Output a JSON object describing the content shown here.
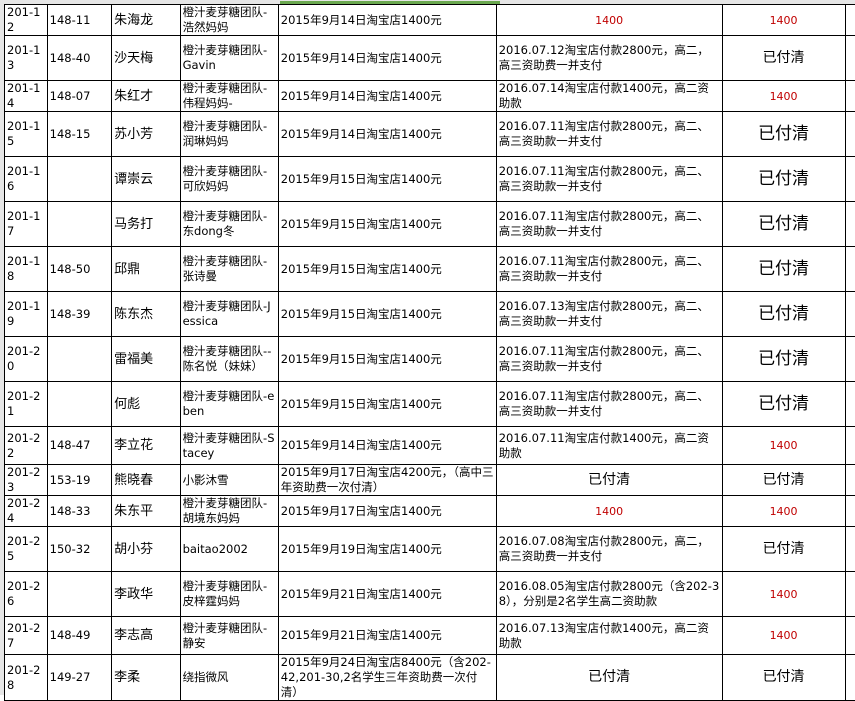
{
  "colors": {
    "red": "#c00000",
    "selection": "#6aa84f",
    "grid": "#000000"
  },
  "rows": [
    {
      "id": "201-12",
      "code": "148-11",
      "name": "朱海龙",
      "team": "橙汁麦芽糖团队-浩然妈妈",
      "date": "2015年9月14日淘宝店1400元",
      "payment": "1400",
      "payment_style": "red",
      "status": "1400",
      "status_style": "red"
    },
    {
      "id": "201-13",
      "code": "148-40",
      "name": "沙天梅",
      "team": "橙汁麦芽糖团队-Gavin",
      "date": "2015年9月14日淘宝店1400元",
      "payment": "2016.07.12淘宝店付款2800元，高二，高三资助费一并支付",
      "payment_style": "text",
      "status": "已付清",
      "status_style": "mid"
    },
    {
      "id": "201-14",
      "code": "148-07",
      "name": "朱红才",
      "team": "橙汁麦芽糖团队-伟程妈妈-",
      "date": "2015年9月14日淘宝店1400元",
      "payment": "2016.07.14淘宝店付款1400元，高二资助款",
      "payment_style": "text",
      "status": "1400",
      "status_style": "red"
    },
    {
      "id": "201-15",
      "code": "148-15",
      "name": "苏小芳",
      "team": "橙汁麦芽糖团队-润琳妈妈",
      "date": "2015年9月14日淘宝店1400元",
      "payment": "2016.07.11淘宝店付款2800元，高二、高三资助款一并支付",
      "payment_style": "text",
      "status": "已付清",
      "status_style": "large"
    },
    {
      "id": "201-16",
      "code": "",
      "name": "谭崇云",
      "team": "橙汁麦芽糖团队-可欣妈妈",
      "date": "2015年9月15日淘宝店1400元",
      "payment": "2016.07.11淘宝店付款2800元，高二、高三资助款一并支付",
      "payment_style": "text",
      "status": "已付清",
      "status_style": "large"
    },
    {
      "id": "201-17",
      "code": "",
      "name": "马务打",
      "team": "橙汁麦芽糖团队-东dong冬",
      "date": "2015年9月15日淘宝店1400元",
      "payment": "2016.07.11淘宝店付款2800元，高二、高三资助款一并支付",
      "payment_style": "text",
      "status": "已付清",
      "status_style": "large"
    },
    {
      "id": "201-18",
      "code": "148-50",
      "name": "邱鼎",
      "team": "橙汁麦芽糖团队-张诗曼",
      "date": "2015年9月15日淘宝店1400元",
      "payment": "2016.07.11淘宝店付款2800元，高二、高三资助款一并支付",
      "payment_style": "text",
      "status": "已付清",
      "status_style": "large"
    },
    {
      "id": "201-19",
      "code": "148-39",
      "name": "陈东杰",
      "team": "橙汁麦芽糖团队-Jessica",
      "date": "2015年9月15日淘宝店1400元",
      "payment": "2016.07.13淘宝店付款2800元，高二、高三资助款一并支付",
      "payment_style": "text",
      "status": "已付清",
      "status_style": "large"
    },
    {
      "id": "201-20",
      "code": "",
      "name": "雷福美",
      "team": "橙汁麦芽糖团队--陈名悦（妹妹）",
      "date": "2015年9月15日淘宝店1400元",
      "payment": "2016.07.11淘宝店付款2800元，高二、高三资助款一并支付",
      "payment_style": "text",
      "status": "已付清",
      "status_style": "large"
    },
    {
      "id": "201-21",
      "code": "",
      "name": "何彪",
      "team": "橙汁麦芽糖团队-eben",
      "date": "2015年9月15日淘宝店1400元",
      "payment": "2016.07.11淘宝店付款2800元，高二、高三资助款一并支付",
      "payment_style": "text",
      "status": "已付清",
      "status_style": "large"
    },
    {
      "id": "201-22",
      "code": "148-47",
      "name": "李立花",
      "team": "橙汁麦芽糖团队-Stacey",
      "date": "2015年9月14日淘宝店1400元",
      "payment": "2016.07.11淘宝店付款1400元，高二资助款",
      "payment_style": "text",
      "status": "1400",
      "status_style": "red"
    },
    {
      "id": "201-23",
      "code": "153-19",
      "name": "熊晓春",
      "team": "小影沐雪",
      "date": "2015年9月17日淘宝店4200元，（高中三年资助费一次付清）",
      "payment": "已付清",
      "payment_style": "mid",
      "status": "已付清",
      "status_style": "mid"
    },
    {
      "id": "201-24",
      "code": "148-33",
      "name": "朱东平",
      "team": "橙汁麦芽糖团队-胡境东妈妈",
      "date": "2015年9月17日淘宝店1400元",
      "payment": "1400",
      "payment_style": "red",
      "status": "1400",
      "status_style": "red"
    },
    {
      "id": "201-25",
      "code": "150-32",
      "name": "胡小芬",
      "team": "baitao2002",
      "date": "2015年9月19日淘宝店1400元",
      "payment": "2016.07.08淘宝店付款2800元，高二，高三资助费一并支付",
      "payment_style": "text",
      "status": "已付清",
      "status_style": "mid"
    },
    {
      "id": "201-26",
      "code": "",
      "name": "李政华",
      "team": "橙汁麦芽糖团队-皮梓霆妈妈",
      "date": "2015年9月21日淘宝店1400元",
      "payment": "2016.08.05淘宝店付款2800元（含202-38），分别是2名学生高二资助款",
      "payment_style": "text",
      "status": "1400",
      "status_style": "red"
    },
    {
      "id": "201-27",
      "code": "148-49",
      "name": "李志高",
      "team": "橙汁麦芽糖团队-静安",
      "date": "2015年9月21日淘宝店1400元",
      "payment": "2016.07.13淘宝店付款1400元，高二资助款",
      "payment_style": "text",
      "status": "1400",
      "status_style": "red"
    },
    {
      "id": "201-28",
      "code": "149-27",
      "name": "李柔",
      "team": "绕指微风",
      "date": "2015年9月24日淘宝店8400元（含202-42,201-30,2名学生三年资助费一次付清）",
      "payment": "已付清",
      "payment_style": "mid",
      "status": "已付清",
      "status_style": "mid"
    }
  ]
}
